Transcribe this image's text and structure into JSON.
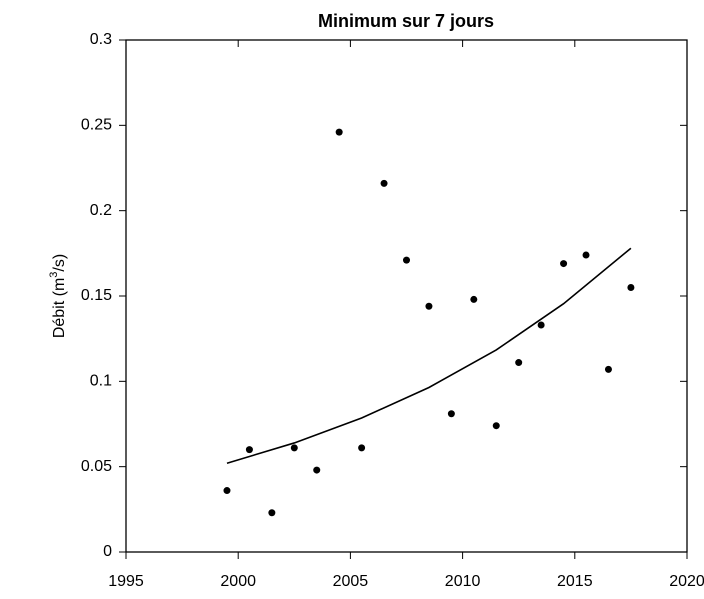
{
  "chart_data": {
    "type": "scatter",
    "title": "Minimum sur 7 jours",
    "ylabel": {
      "text": "Débit  (m",
      "sup": "3",
      "tail": "/s)"
    },
    "xlim": [
      1995,
      2020
    ],
    "xticks": [
      1995,
      2000,
      2005,
      2010,
      2015,
      2020
    ],
    "ylim": [
      0,
      0.3
    ],
    "yticks": [
      0,
      0.05,
      0.1,
      0.15,
      0.2,
      0.25,
      0.3
    ],
    "color": "#000000",
    "x": [
      1999.5,
      2000.5,
      2001.5,
      2002.5,
      2003.5,
      2004.5,
      2005.5,
      2006.5,
      2007.5,
      2008.5,
      2009.5,
      2010.5,
      2011.5,
      2012.5,
      2013.5,
      2014.5,
      2015.5,
      2016.5,
      2017.5
    ],
    "values": [
      0.036,
      0.06,
      0.023,
      0.061,
      0.048,
      0.246,
      0.061,
      0.216,
      0.171,
      0.144,
      0.081,
      0.148,
      0.074,
      0.111,
      0.133,
      0.169,
      0.174,
      0.107,
      0.155
    ],
    "trend": {
      "x": [
        1999.5,
        2002.5,
        2005.5,
        2008.5,
        2011.5,
        2014.5,
        2017.5
      ],
      "values": [
        0.052,
        0.0639,
        0.0785,
        0.0964,
        0.1184,
        0.1455,
        0.178
      ]
    }
  }
}
